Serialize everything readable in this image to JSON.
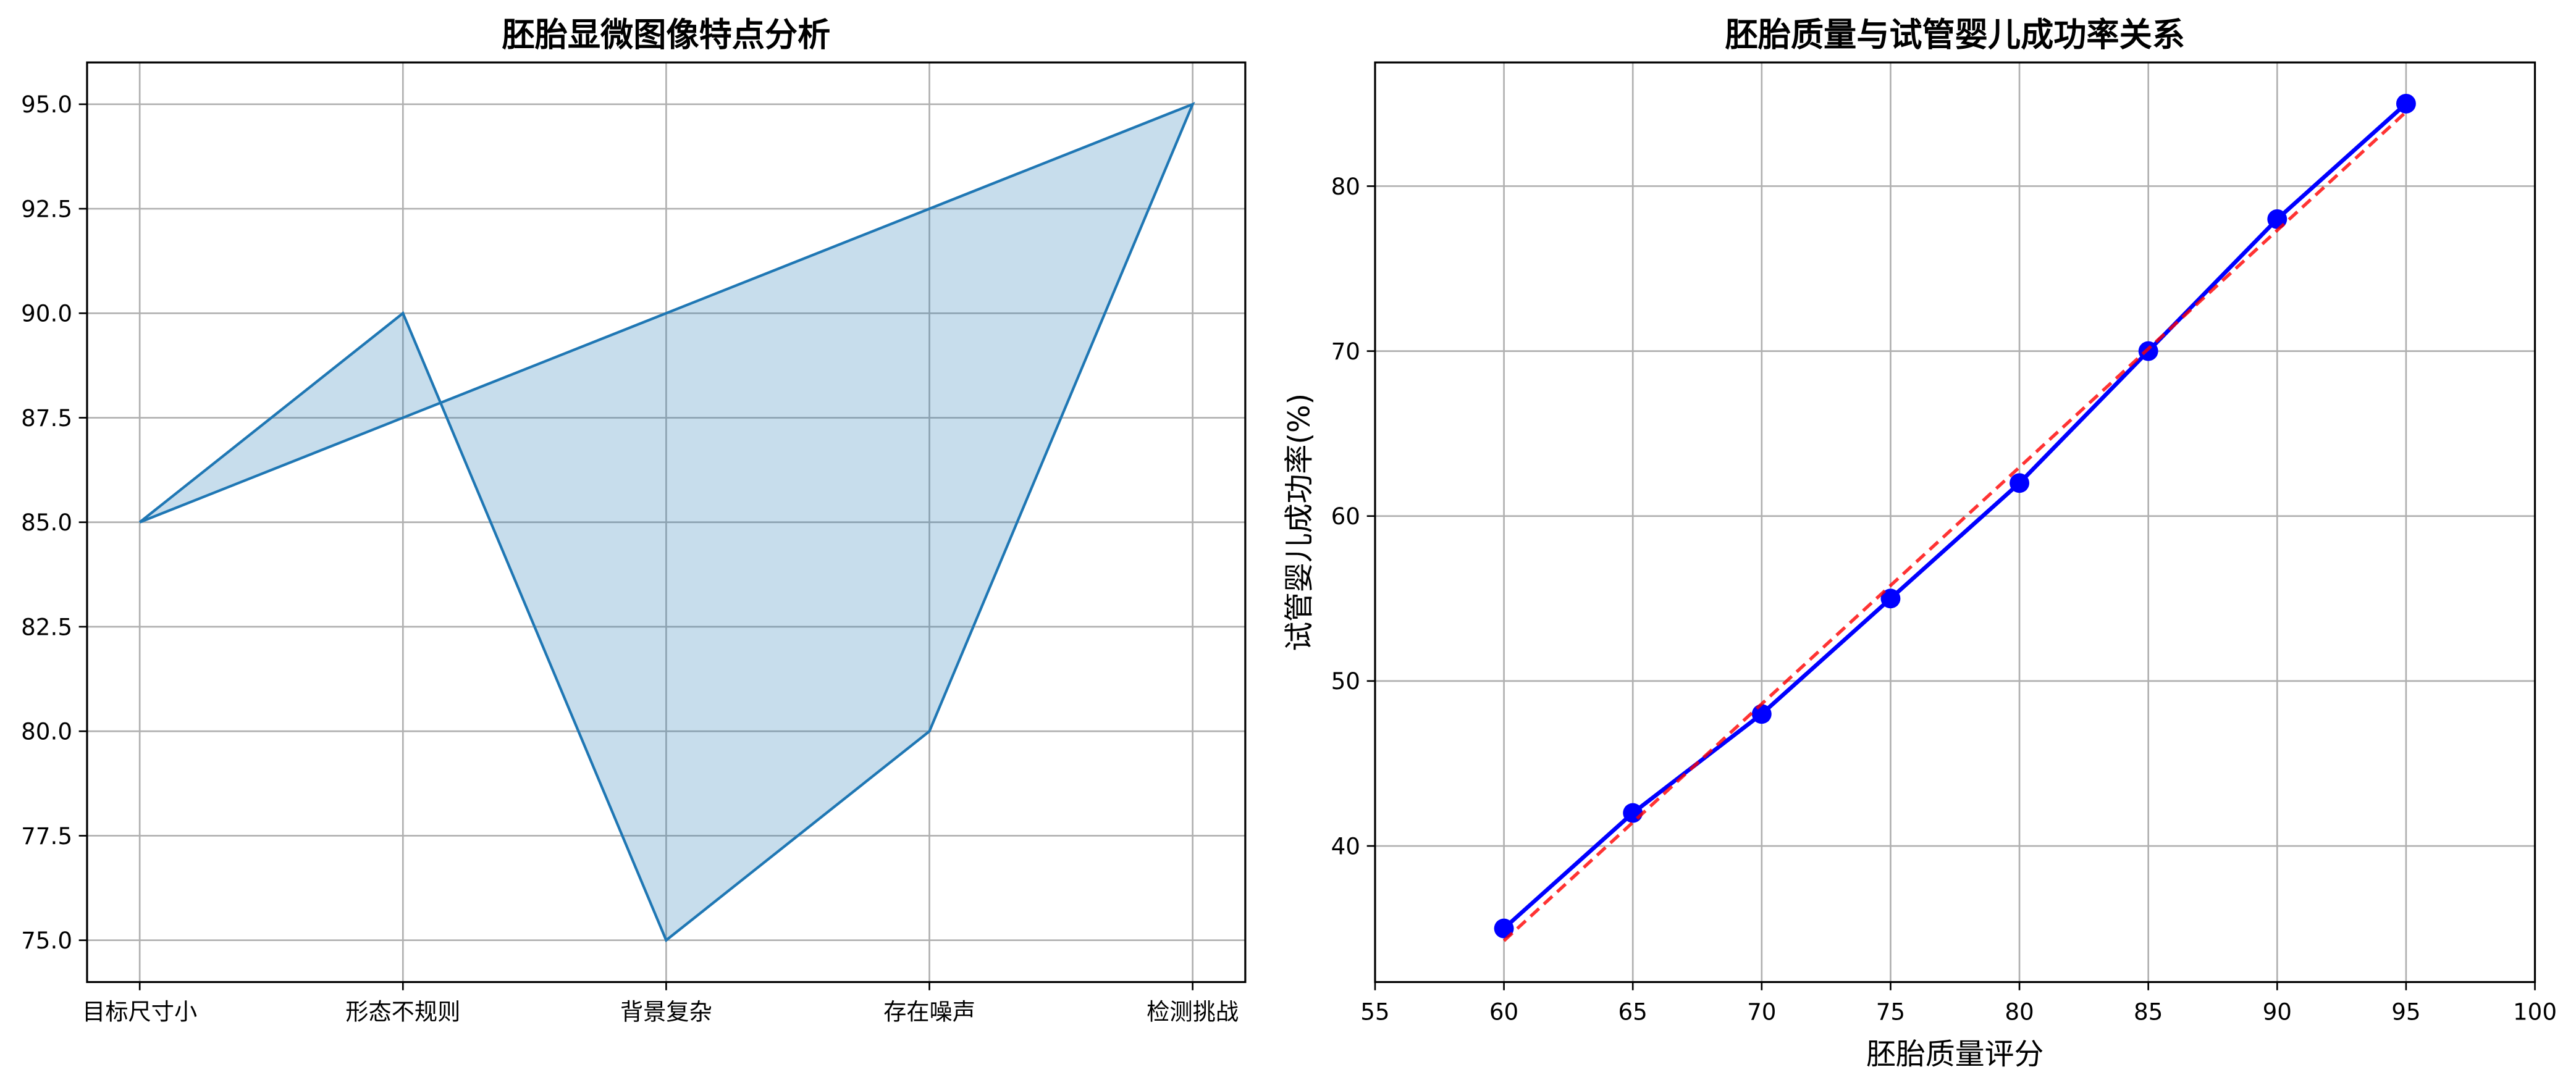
{
  "chart_data": [
    {
      "type": "line",
      "title": "胚胎显微图像特点分析",
      "categories": [
        "目标尺寸小",
        "形态不规则",
        "背景复杂",
        "存在噪声",
        "检测挑战"
      ],
      "values": [
        85,
        90,
        75,
        80,
        95
      ],
      "color": "#1f77b4",
      "fill": true,
      "ylim": [
        74,
        96
      ],
      "yticks": [
        {
          "value": 75,
          "label": "75.0"
        },
        {
          "value": 77.5,
          "label": "77.5"
        },
        {
          "value": 80,
          "label": "80.0"
        },
        {
          "value": 82.5,
          "label": "82.5"
        },
        {
          "value": 85,
          "label": "85.0"
        },
        {
          "value": 87.5,
          "label": "87.5"
        },
        {
          "value": 90,
          "label": "90.0"
        },
        {
          "value": 92.5,
          "label": "92.5"
        },
        {
          "value": 95,
          "label": "95.0"
        }
      ],
      "grid": true
    },
    {
      "type": "line",
      "title": "胚胎质量与试管婴儿成功率关系",
      "xlabel": "胚胎质量评分",
      "ylabel": "试管婴儿成功率(%)",
      "x": [
        60,
        65,
        70,
        75,
        80,
        85,
        90,
        95
      ],
      "series": [
        {
          "color": "#0000ff",
          "marker": true,
          "values": [
            35,
            42,
            48,
            55,
            62,
            70,
            78,
            85
          ]
        },
        {
          "color": "#ff0000",
          "dashed": true,
          "values": [
            34.25,
            41.43,
            48.61,
            55.79,
            62.96,
            70.14,
            77.32,
            84.5
          ]
        }
      ],
      "xlim": [
        55,
        100
      ],
      "xticks": [
        55,
        60,
        65,
        70,
        75,
        80,
        85,
        90,
        95,
        100
      ],
      "ylim": [
        31.75,
        87.5
      ],
      "yticks": [
        40,
        50,
        60,
        70,
        80
      ],
      "grid": true
    }
  ]
}
